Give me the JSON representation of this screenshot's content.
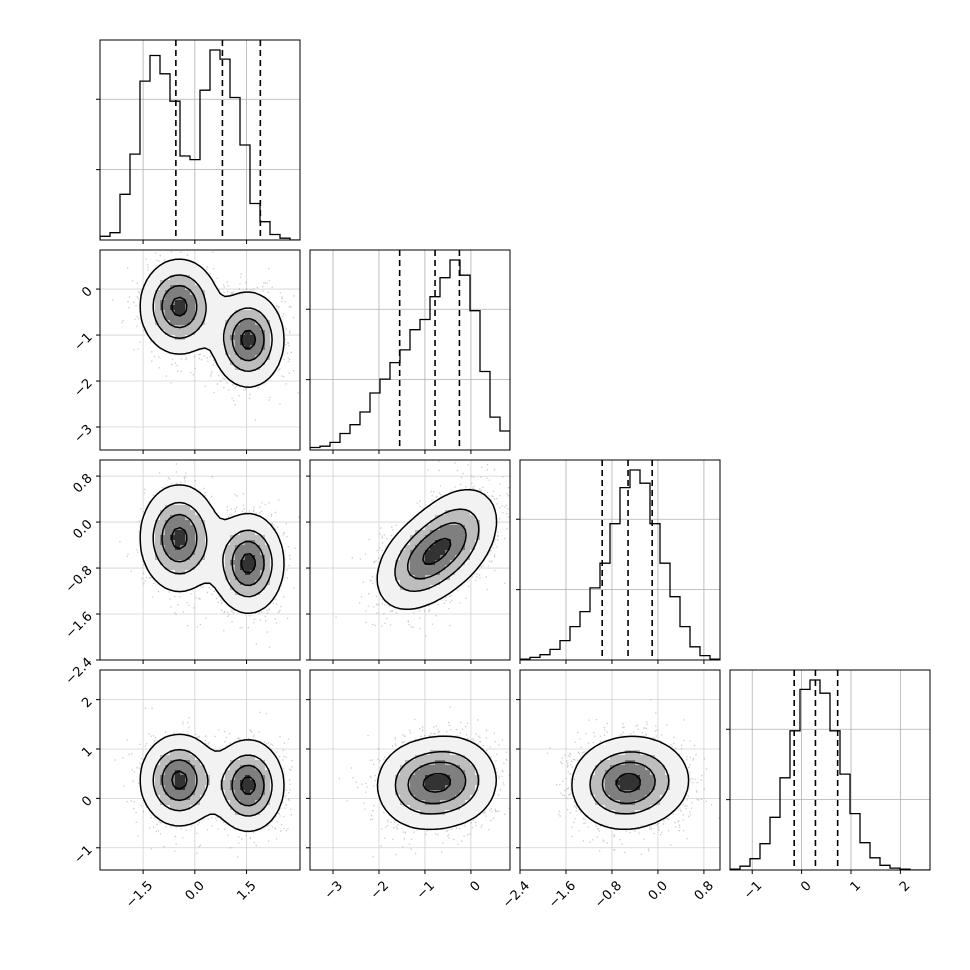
{
  "chart_data": {
    "type": "corner",
    "grid": true,
    "parameters": [
      {
        "ticks": [
          -1.5,
          0.0,
          1.5
        ],
        "tick_labels": [
          "−1.5",
          "0.0",
          "1.5"
        ],
        "range": [
          -2.75,
          3.05
        ],
        "quantiles": [
          -0.55,
          0.8,
          1.9
        ]
      },
      {
        "ticks": [
          -3,
          -2,
          -1,
          0
        ],
        "tick_labels": [
          "−3",
          "−2",
          "−1",
          "0"
        ],
        "range": [
          -3.5,
          0.85
        ],
        "quantiles": [
          -1.55,
          -0.78,
          -0.25
        ]
      },
      {
        "ticks": [
          -2.4,
          -1.6,
          -0.8,
          0.0,
          0.8
        ],
        "tick_labels": [
          "−2.4",
          "−1.6",
          "−0.8",
          "0.0",
          "0.8"
        ],
        "range": [
          -2.4,
          1.08
        ],
        "quantiles": [
          -0.97,
          -0.52,
          -0.1
        ]
      },
      {
        "ticks": [
          -1,
          0,
          1,
          2
        ],
        "tick_labels": [
          "−1",
          "0",
          "1",
          "2"
        ],
        "range": [
          -1.45,
          2.6
        ],
        "quantiles": [
          -0.15,
          0.28,
          0.73
        ]
      }
    ],
    "histograms": [
      {
        "bin_start": -2.75,
        "bin_width": 0.29,
        "counts": [
          2,
          4,
          25,
          47,
          87,
          101,
          91,
          76,
          46,
          44,
          82,
          104,
          99,
          78,
          52,
          20,
          10,
          3,
          1,
          0
        ]
      },
      {
        "bin_start": -3.5,
        "bin_width": 0.2175,
        "counts": [
          2,
          3,
          6,
          13,
          20,
          30,
          45,
          56,
          69,
          79,
          95,
          103,
          121,
          136,
          150,
          138,
          110,
          62,
          26,
          15
        ]
      },
      {
        "bin_start": -2.4,
        "bin_width": 0.174,
        "counts": [
          1,
          3,
          6,
          12,
          22,
          38,
          55,
          82,
          110,
          155,
          196,
          216,
          201,
          155,
          110,
          72,
          38,
          15,
          5,
          1
        ]
      },
      {
        "bin_start": -1.45,
        "bin_width": 0.2025,
        "counts": [
          1,
          4,
          12,
          28,
          56,
          98,
          148,
          192,
          202,
          188,
          148,
          102,
          60,
          29,
          13,
          5,
          2,
          1,
          0,
          0
        ]
      }
    ],
    "components": [
      {
        "weight": 0.5,
        "mean": [
          -0.45,
          -0.38,
          -0.28,
          0.37
        ],
        "sd": [
          0.55,
          0.5,
          0.45,
          0.45
        ]
      },
      {
        "weight": 0.5,
        "mean": [
          1.55,
          -1.1,
          -0.72,
          0.26
        ],
        "sd": [
          0.5,
          0.5,
          0.42,
          0.45
        ]
      }
    ],
    "correlation_within": [
      [
        1,
        0,
        0,
        0
      ],
      [
        0,
        1,
        0.35,
        0
      ],
      [
        0,
        0.35,
        1,
        0
      ],
      [
        0,
        0,
        0,
        1
      ]
    ],
    "contour_levels": [
      0.12,
      0.39,
      0.66,
      0.92
    ]
  }
}
